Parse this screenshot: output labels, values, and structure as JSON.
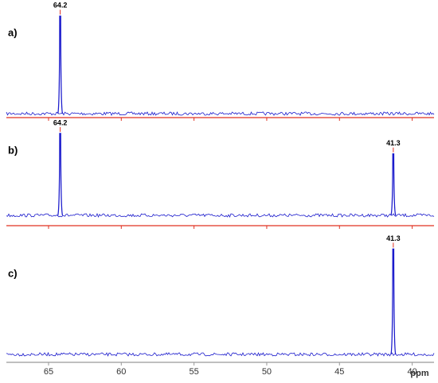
{
  "chart_data": [
    {
      "type": "spectrum",
      "label": "a)",
      "x": [
        64.2
      ],
      "values": [
        1.0
      ],
      "xlim": [
        67.9,
        38.5
      ],
      "ylim": [
        0,
        1.1
      ],
      "xticks": [
        65,
        60,
        55,
        50,
        45,
        40
      ],
      "show_tick_labels": false,
      "axis_color": "#e03020",
      "color": "#1a1acc"
    },
    {
      "type": "spectrum",
      "label": "b)",
      "x": [
        64.2,
        41.3
      ],
      "values": [
        0.84,
        0.63
      ],
      "xlim": [
        67.9,
        38.5
      ],
      "ylim": [
        0,
        1.1
      ],
      "xticks": [
        65,
        60,
        55,
        50,
        45,
        40
      ],
      "show_tick_labels": false,
      "axis_color": "#e03020",
      "color": "#1a1acc"
    },
    {
      "type": "spectrum",
      "label": "c)",
      "x": [
        41.3
      ],
      "values": [
        1.08
      ],
      "xlim": [
        67.9,
        38.5
      ],
      "ylim": [
        0,
        1.1
      ],
      "xticks": [
        65,
        60,
        55,
        50,
        45,
        40
      ],
      "show_tick_labels": true,
      "xlabel": "ppm",
      "axis_color": "#999999",
      "color": "#1a1acc"
    }
  ]
}
